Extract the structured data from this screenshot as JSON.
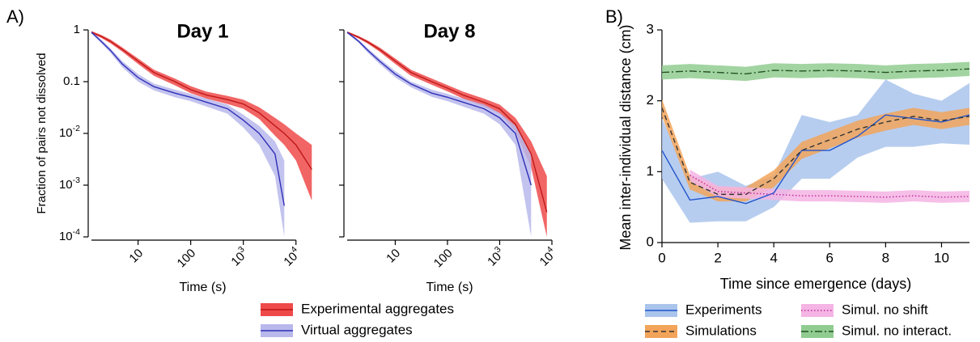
{
  "chart_data": [
    {
      "type": "line",
      "panel_label": "A)",
      "title": "Day 1",
      "ylabel": "Fraction of pairs not dissolved",
      "xlabel": "Time (s)",
      "xscale": "log",
      "yscale": "log",
      "xlim": [
        1.3,
        22000
      ],
      "ylim": [
        0.0001,
        1
      ],
      "xticks": [
        10,
        100,
        {
          "value": 1000,
          "label": "103"
        },
        {
          "value": 10000,
          "label": "104"
        }
      ],
      "yticks": [
        1,
        0.1,
        {
          "value": 0.01,
          "label": "10-2"
        },
        {
          "value": 0.001,
          "label": "10-3"
        },
        {
          "value": 0.0001,
          "label": "10-4"
        }
      ],
      "x": [
        1.3,
        2,
        3,
        5,
        10,
        20,
        50,
        100,
        200,
        500,
        1000,
        2000,
        4000,
        6000,
        10000,
        20000
      ],
      "series": [
        {
          "name": "Experimental aggregates",
          "color": "#c01818",
          "band_color": "#ee4a4a",
          "dash": "solid",
          "values": [
            0.9,
            0.75,
            0.6,
            0.42,
            0.25,
            0.15,
            0.1,
            0.07,
            0.055,
            0.045,
            0.037,
            0.025,
            0.014,
            0.01,
            0.006,
            0.002
          ],
          "lower": [
            0.85,
            0.7,
            0.55,
            0.38,
            0.22,
            0.13,
            0.085,
            0.06,
            0.047,
            0.037,
            0.03,
            0.019,
            0.009,
            0.006,
            0.003,
            0.0005
          ],
          "upper": [
            0.95,
            0.8,
            0.65,
            0.46,
            0.28,
            0.17,
            0.115,
            0.082,
            0.064,
            0.053,
            0.045,
            0.032,
            0.02,
            0.015,
            0.01,
            0.006
          ]
        },
        {
          "name": "Virtual aggregates",
          "color": "#3030b8",
          "band_color": "#b8b8ec",
          "dash": "solid",
          "values": [
            0.9,
            0.6,
            0.4,
            0.22,
            0.12,
            0.08,
            0.06,
            0.05,
            0.04,
            0.03,
            0.018,
            0.01,
            0.004,
            0.0004,
            null,
            null
          ],
          "lower": [
            0.86,
            0.55,
            0.36,
            0.19,
            0.1,
            0.068,
            0.05,
            0.042,
            0.033,
            0.024,
            0.013,
            0.006,
            0.0015,
            0.0001,
            null,
            null
          ],
          "upper": [
            0.94,
            0.65,
            0.44,
            0.25,
            0.14,
            0.092,
            0.07,
            0.058,
            0.047,
            0.036,
            0.023,
            0.014,
            0.007,
            0.003,
            null,
            null
          ]
        }
      ]
    },
    {
      "type": "line",
      "title": "Day 8",
      "xlabel": "Time (s)",
      "show_ytick_labels": false,
      "xscale": "log",
      "yscale": "log",
      "xlim": [
        1.2,
        10000
      ],
      "ylim": [
        0.0001,
        1
      ],
      "xticks": [
        10,
        100,
        {
          "value": 1000,
          "label": "103"
        },
        {
          "value": 10000,
          "label": "104"
        }
      ],
      "yticks": [
        1,
        0.1,
        0.01,
        0.001,
        0.0001
      ],
      "x": [
        1.2,
        2,
        3,
        5,
        10,
        20,
        50,
        100,
        200,
        500,
        1000,
        2000,
        4000,
        8000
      ],
      "series": [
        {
          "color": "#c01818",
          "band_color": "#ee4a4a",
          "dash": "solid",
          "values": [
            0.9,
            0.72,
            0.58,
            0.42,
            0.25,
            0.15,
            0.1,
            0.075,
            0.055,
            0.04,
            0.03,
            0.015,
            0.004,
            0.0003
          ],
          "lower": [
            0.86,
            0.68,
            0.54,
            0.38,
            0.22,
            0.13,
            0.087,
            0.065,
            0.047,
            0.033,
            0.024,
            0.011,
            0.0022,
            0.0001
          ],
          "upper": [
            0.94,
            0.76,
            0.62,
            0.46,
            0.28,
            0.17,
            0.115,
            0.086,
            0.064,
            0.047,
            0.036,
            0.02,
            0.007,
            0.0015
          ]
        },
        {
          "color": "#3030b8",
          "band_color": "#b8b8ec",
          "dash": "solid",
          "values": [
            0.9,
            0.6,
            0.4,
            0.25,
            0.14,
            0.09,
            0.06,
            0.05,
            0.04,
            0.03,
            0.02,
            0.01,
            0.001,
            null
          ],
          "lower": [
            0.86,
            0.56,
            0.36,
            0.22,
            0.12,
            0.078,
            0.051,
            0.042,
            0.033,
            0.024,
            0.015,
            0.006,
            0.0001,
            null
          ],
          "upper": [
            0.94,
            0.64,
            0.44,
            0.28,
            0.16,
            0.1,
            0.07,
            0.058,
            0.047,
            0.036,
            0.025,
            0.014,
            0.004,
            null
          ]
        }
      ]
    },
    {
      "type": "line",
      "panel_label": "B)",
      "ylabel": "Mean inter-individual distance (cm)",
      "xlabel": "Time since emergence (days)",
      "xscale": "linear",
      "yscale": "linear",
      "xlim": [
        0,
        11
      ],
      "ylim": [
        0,
        3
      ],
      "xticks": [
        0,
        2,
        4,
        6,
        8,
        10
      ],
      "yticks": [
        0,
        1,
        2,
        3
      ],
      "x": [
        0,
        1,
        2,
        3,
        4,
        5,
        6,
        7,
        8,
        9,
        10,
        11
      ],
      "series": [
        {
          "name": "Experiments",
          "color": "#2255cc",
          "band_color": "#aac4ec",
          "dash": "solid",
          "values": [
            1.3,
            0.6,
            0.65,
            0.55,
            0.7,
            1.3,
            1.3,
            1.5,
            1.8,
            1.75,
            1.7,
            1.8
          ],
          "lower": [
            0.9,
            0.28,
            0.3,
            0.3,
            0.5,
            0.9,
            0.9,
            1.2,
            1.35,
            1.35,
            1.4,
            1.38
          ],
          "upper": [
            1.75,
            0.9,
            1.0,
            0.8,
            0.95,
            1.8,
            1.7,
            1.8,
            2.3,
            2.1,
            2.0,
            2.25
          ]
        },
        {
          "name": "Simulations",
          "color": "#333333",
          "band_color": "#f2a45a",
          "dash": "dashed",
          "values": [
            1.9,
            0.85,
            0.68,
            0.68,
            0.9,
            1.3,
            1.45,
            1.6,
            1.7,
            1.78,
            1.72,
            1.78
          ],
          "lower": [
            1.78,
            0.75,
            0.58,
            0.58,
            0.78,
            1.18,
            1.33,
            1.48,
            1.58,
            1.66,
            1.6,
            1.66
          ],
          "upper": [
            2.02,
            0.95,
            0.78,
            0.78,
            1.02,
            1.42,
            1.57,
            1.72,
            1.82,
            1.9,
            1.84,
            1.9
          ]
        },
        {
          "name": "Simul. no shift",
          "color": "#c02898",
          "band_color": "#f4b4e4",
          "dash": "dotted",
          "values": [
            null,
            0.95,
            0.72,
            0.7,
            0.68,
            0.66,
            0.66,
            0.65,
            0.64,
            0.66,
            0.64,
            0.65
          ],
          "lower": [
            null,
            0.87,
            0.64,
            0.62,
            0.6,
            0.58,
            0.58,
            0.57,
            0.56,
            0.58,
            0.56,
            0.57
          ],
          "upper": [
            null,
            1.03,
            0.8,
            0.78,
            0.76,
            0.74,
            0.74,
            0.73,
            0.72,
            0.74,
            0.72,
            0.73
          ]
        },
        {
          "name": "Simul. no interact.",
          "color": "#245224",
          "band_color": "#90cc90",
          "dash": "dashdot",
          "values": [
            2.4,
            2.42,
            2.4,
            2.38,
            2.43,
            2.42,
            2.43,
            2.42,
            2.4,
            2.42,
            2.43,
            2.45
          ],
          "lower": [
            2.3,
            2.32,
            2.3,
            2.28,
            2.33,
            2.32,
            2.33,
            2.32,
            2.3,
            2.32,
            2.33,
            2.35
          ],
          "upper": [
            2.5,
            2.52,
            2.5,
            2.48,
            2.53,
            2.52,
            2.53,
            2.52,
            2.5,
            2.52,
            2.53,
            2.55
          ]
        }
      ]
    }
  ]
}
